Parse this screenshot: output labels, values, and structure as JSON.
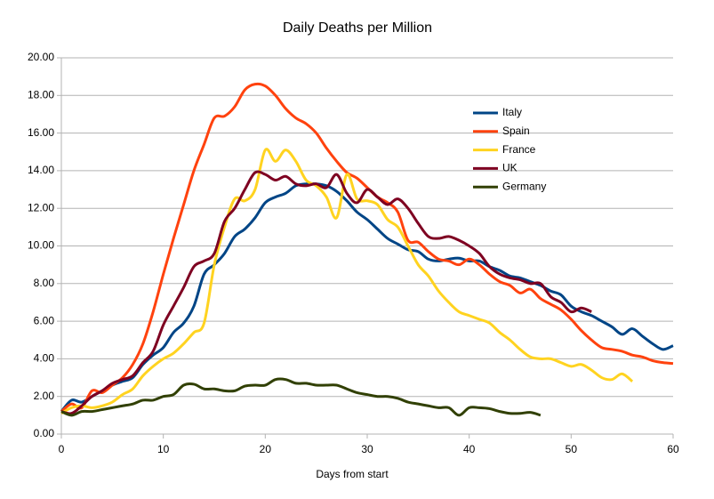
{
  "chart_data": {
    "type": "line",
    "title": "Daily Deaths per Million",
    "x_label": "Days from start",
    "x": [
      0,
      1,
      2,
      3,
      4,
      5,
      6,
      7,
      8,
      9,
      10,
      11,
      12,
      13,
      14,
      15,
      16,
      17,
      18,
      19,
      20,
      21,
      22,
      23,
      24,
      25,
      26,
      27,
      28,
      29,
      30,
      31,
      32,
      33,
      34,
      35,
      36,
      37,
      38,
      39,
      40,
      41,
      42,
      43,
      44,
      45,
      46,
      47,
      48,
      49,
      50,
      51,
      52,
      53,
      54,
      55,
      56,
      57,
      58,
      59,
      60
    ],
    "series": [
      {
        "name": "Italy",
        "color": "#004586",
        "values": [
          1.2,
          1.8,
          1.7,
          2.0,
          2.3,
          2.6,
          2.8,
          3.0,
          3.7,
          4.2,
          4.6,
          5.4,
          5.9,
          6.8,
          8.5,
          9.0,
          9.6,
          10.5,
          10.9,
          11.5,
          12.3,
          12.6,
          12.8,
          13.2,
          13.3,
          13.3,
          13.2,
          12.9,
          12.4,
          11.8,
          11.4,
          10.9,
          10.4,
          10.1,
          9.8,
          9.7,
          9.3,
          9.2,
          9.3,
          9.35,
          9.2,
          9.2,
          8.9,
          8.7,
          8.4,
          8.3,
          8.1,
          7.9,
          7.6,
          7.4,
          6.8,
          6.5,
          6.3,
          6.0,
          5.7,
          5.3,
          5.6,
          5.2,
          4.8,
          4.5,
          4.7
        ]
      },
      {
        "name": "Spain",
        "color": "#ff420e",
        "values": [
          1.2,
          1.6,
          1.4,
          2.3,
          2.2,
          2.6,
          3.0,
          3.7,
          4.8,
          6.5,
          8.5,
          10.4,
          12.2,
          14.0,
          15.4,
          16.8,
          16.9,
          17.4,
          18.3,
          18.6,
          18.5,
          18.0,
          17.3,
          16.8,
          16.5,
          16.0,
          15.2,
          14.5,
          13.9,
          13.6,
          13.1,
          12.6,
          12.3,
          11.8,
          10.3,
          10.2,
          9.7,
          9.3,
          9.2,
          9.0,
          9.3,
          9.0,
          8.5,
          8.1,
          7.9,
          7.5,
          7.7,
          7.2,
          6.9,
          6.6,
          6.1,
          5.5,
          5.0,
          4.6,
          4.5,
          4.4,
          4.2,
          4.1,
          3.9,
          3.8,
          3.75
        ]
      },
      {
        "name": "France",
        "color": "#ffd320",
        "values": [
          1.1,
          1.4,
          1.5,
          1.4,
          1.5,
          1.7,
          2.1,
          2.4,
          3.1,
          3.6,
          4.0,
          4.3,
          4.8,
          5.4,
          5.9,
          9.0,
          11.0,
          12.5,
          12.4,
          13.0,
          15.1,
          14.5,
          15.1,
          14.5,
          13.5,
          13.2,
          12.6,
          11.5,
          13.8,
          12.5,
          12.4,
          12.2,
          11.4,
          11.0,
          10.0,
          9.0,
          8.4,
          7.6,
          7.0,
          6.5,
          6.3,
          6.1,
          5.9,
          5.4,
          5.0,
          4.5,
          4.1,
          4.0,
          4.0,
          3.8,
          3.6,
          3.7,
          3.4,
          3.0,
          2.9,
          3.2,
          2.8,
          null,
          null,
          null,
          null
        ]
      },
      {
        "name": "UK",
        "color": "#7e0021",
        "values": [
          1.2,
          1.1,
          1.5,
          2.0,
          2.3,
          2.7,
          2.9,
          3.1,
          3.8,
          4.4,
          5.8,
          6.8,
          7.8,
          8.9,
          9.2,
          9.6,
          11.3,
          12.0,
          13.0,
          13.9,
          13.8,
          13.5,
          13.7,
          13.3,
          13.2,
          13.3,
          13.1,
          13.8,
          12.8,
          12.3,
          13.0,
          12.6,
          12.2,
          12.5,
          12.0,
          11.2,
          10.5,
          10.4,
          10.5,
          10.3,
          10.0,
          9.6,
          8.9,
          8.5,
          8.3,
          8.2,
          8.0,
          8.0,
          7.3,
          7.0,
          6.5,
          6.7,
          6.5,
          null,
          null,
          null,
          null,
          null,
          null,
          null,
          null
        ]
      },
      {
        "name": "Germany",
        "color": "#314004",
        "values": [
          1.2,
          1.0,
          1.2,
          1.2,
          1.3,
          1.4,
          1.5,
          1.6,
          1.8,
          1.8,
          2.0,
          2.1,
          2.6,
          2.65,
          2.4,
          2.4,
          2.3,
          2.3,
          2.55,
          2.6,
          2.6,
          2.9,
          2.9,
          2.7,
          2.7,
          2.6,
          2.6,
          2.6,
          2.4,
          2.2,
          2.1,
          2.0,
          2.0,
          1.9,
          1.7,
          1.6,
          1.5,
          1.4,
          1.4,
          1.0,
          1.4,
          1.4,
          1.35,
          1.2,
          1.1,
          1.1,
          1.15,
          1.0,
          null,
          null,
          null,
          null,
          null,
          null,
          null,
          null,
          null,
          null,
          null,
          null,
          null
        ]
      }
    ],
    "xlim": [
      0,
      60
    ],
    "xticks": [
      0,
      10,
      20,
      30,
      40,
      50,
      60
    ],
    "ylim": [
      0,
      20
    ],
    "yticks": [
      {
        "value": 0,
        "label": "0.00"
      },
      {
        "value": 2,
        "label": "2.00"
      },
      {
        "value": 4,
        "label": "4.00"
      },
      {
        "value": 6,
        "label": "6.00"
      },
      {
        "value": 8,
        "label": "8.00"
      },
      {
        "value": 10,
        "label": "10.00"
      },
      {
        "value": 12,
        "label": "12.00"
      },
      {
        "value": 14,
        "label": "14.00"
      },
      {
        "value": 16,
        "label": "16.00"
      },
      {
        "value": 18,
        "label": "18.00"
      },
      {
        "value": 20,
        "label": "20.00"
      }
    ],
    "grid": true,
    "legend": "upper-right"
  }
}
